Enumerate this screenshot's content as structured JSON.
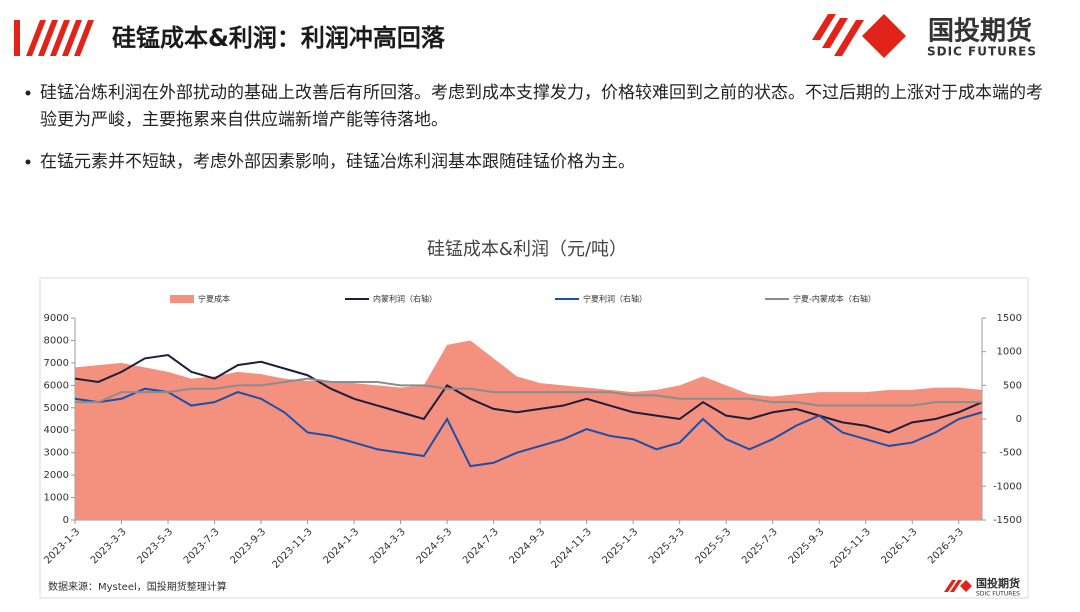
{
  "header": {
    "title": "硅锰成本&利润：利润冲高回落"
  },
  "logo": {
    "name": "国投期货",
    "tagline": "SDIC FUTURES"
  },
  "bullets": [
    "硅锰冶炼利润在外部扰动的基础上改善后有所回落。考虑到成本支撑发力，价格较难回到之前的状态。不过后期的上涨对于成本端的考验更为严峻，主要拖累来自供应端新增产能等待落地。",
    "在锰元素并不短缺，考虑外部因素影响，硅锰冶炼利润基本跟随硅锰价格为主。"
  ],
  "chart_data": {
    "type": "line",
    "title": "硅锰成本&利润（元/吨）",
    "source": "数据来源：Mysteel，国投期货整理计算",
    "categories": [
      "2023-1-3",
      null,
      "2023-3-3",
      null,
      "2023-5-3",
      null,
      "2023-7-3",
      null,
      "2023-9-3",
      null,
      "2023-11-3",
      null,
      "2024-1-3",
      null,
      "2024-3-3",
      null,
      "2024-5-3",
      null,
      "2024-7-3",
      null,
      "2024-9-3",
      null,
      "2024-11-3",
      null,
      "2025-1-3",
      null,
      "2025-3-3",
      null,
      "2025-5-3",
      null,
      "2025-7-3",
      null,
      "2025-9-3",
      null,
      "2025-11-3",
      null,
      "2026-1-3",
      null,
      "2026-3-3",
      null
    ],
    "series": [
      {
        "name": "宁夏成本",
        "color": "#f4907e",
        "kind": "area",
        "values": [
          6800,
          6900,
          7000,
          6800,
          6600,
          6300,
          6400,
          6600,
          6500,
          6300,
          6200,
          6200,
          6100,
          6000,
          5900,
          6000,
          7800,
          8000,
          7200,
          6400,
          6100,
          6000,
          5900,
          5800,
          5700,
          5800,
          6000,
          6400,
          6000,
          5600,
          5500,
          5600,
          5700,
          5700,
          5700,
          5800,
          5800,
          5900,
          5900,
          5800
        ]
      },
      {
        "name": "内蒙利润（右轴）",
        "color": "#1f1d3d",
        "kind": "line",
        "axis": "y2",
        "values": [
          600,
          550,
          700,
          900,
          950,
          700,
          600,
          800,
          850,
          750,
          650,
          450,
          300,
          200,
          100,
          0,
          500,
          300,
          150,
          100,
          150,
          200,
          300,
          200,
          100,
          50,
          0,
          250,
          50,
          0,
          100,
          150,
          50,
          -50,
          -100,
          -200,
          -50,
          0,
          100,
          250
        ]
      },
      {
        "name": "宁夏利润（右轴）",
        "color": "#1d4fa8",
        "kind": "line",
        "axis": "y2",
        "values": [
          300,
          250,
          300,
          450,
          400,
          200,
          250,
          400,
          300,
          100,
          -200,
          -250,
          -350,
          -450,
          -500,
          -550,
          0,
          -700,
          -650,
          -500,
          -400,
          -300,
          -150,
          -250,
          -300,
          -450,
          -350,
          0,
          -300,
          -450,
          -300,
          -100,
          50,
          -200,
          -300,
          -400,
          -350,
          -200,
          0,
          100
        ]
      },
      {
        "name": "宁夏-内蒙成本（右轴）",
        "color": "#8c8c8c",
        "kind": "line",
        "axis": "y2",
        "values": [
          250,
          250,
          400,
          400,
          400,
          450,
          450,
          500,
          500,
          550,
          600,
          550,
          550,
          550,
          500,
          500,
          450,
          450,
          400,
          400,
          400,
          400,
          400,
          400,
          350,
          350,
          300,
          300,
          300,
          300,
          250,
          250,
          200,
          200,
          200,
          200,
          200,
          250,
          250,
          250
        ]
      }
    ],
    "ylim": [
      0,
      9000
    ],
    "yticks": [
      0,
      1000,
      2000,
      3000,
      4000,
      5000,
      6000,
      7000,
      8000,
      9000
    ],
    "y2lim": [
      -1500,
      1500
    ],
    "y2ticks": [
      -1500,
      -1000,
      -500,
      0,
      500,
      1000,
      1500
    ],
    "grid": false
  }
}
